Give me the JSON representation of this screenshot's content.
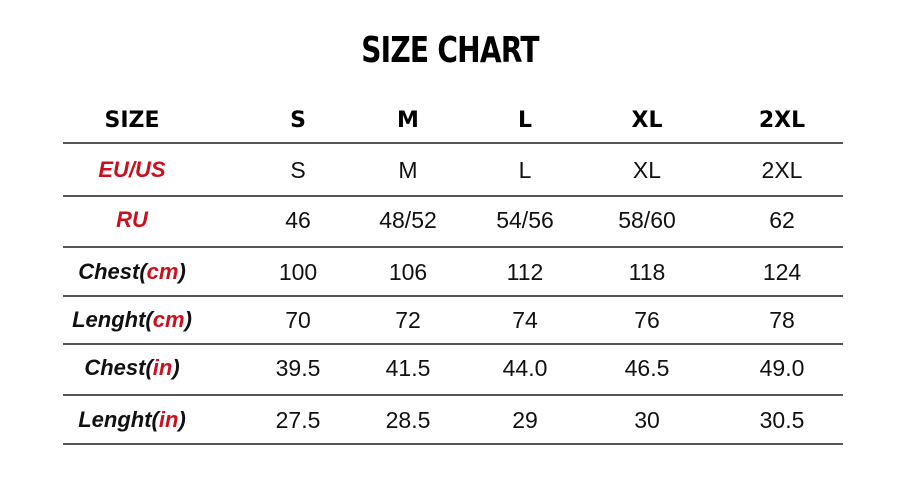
{
  "title": "SIZE CHART",
  "colors": {
    "label_red": "#c8101e",
    "text": "#111111",
    "rule": "#555555"
  },
  "chart_data": {
    "type": "table",
    "title": "SIZE CHART",
    "header": {
      "label": "SIZE",
      "columns": [
        "S",
        "M",
        "L",
        "XL",
        "2XL"
      ]
    },
    "rows": [
      {
        "label_main": "EU/US",
        "label_unit": "",
        "label_all_red": true,
        "values": [
          "S",
          "M",
          "L",
          "XL",
          "2XL"
        ]
      },
      {
        "label_main": "RU",
        "label_unit": "",
        "label_all_red": true,
        "values": [
          "46",
          "48/52",
          "54/56",
          "58/60",
          "62"
        ]
      },
      {
        "label_main": "Chest(",
        "label_unit": "cm",
        "label_close": ")",
        "label_all_red": false,
        "values": [
          "100",
          "106",
          "112",
          "118",
          "124"
        ]
      },
      {
        "label_main": "Lenght(",
        "label_unit": "cm",
        "label_close": ")",
        "label_all_red": false,
        "values": [
          "70",
          "72",
          "74",
          "76",
          "78"
        ]
      },
      {
        "label_main": "Chest(",
        "label_unit": "in",
        "label_close": ")",
        "label_all_red": false,
        "values": [
          "39.5",
          "41.5",
          "44.0",
          "46.5",
          "49.0"
        ]
      },
      {
        "label_main": "Lenght(",
        "label_unit": "in",
        "label_close": ")",
        "label_all_red": false,
        "values": [
          "27.5",
          "28.5",
          "29",
          "30",
          "30.5"
        ]
      }
    ]
  }
}
